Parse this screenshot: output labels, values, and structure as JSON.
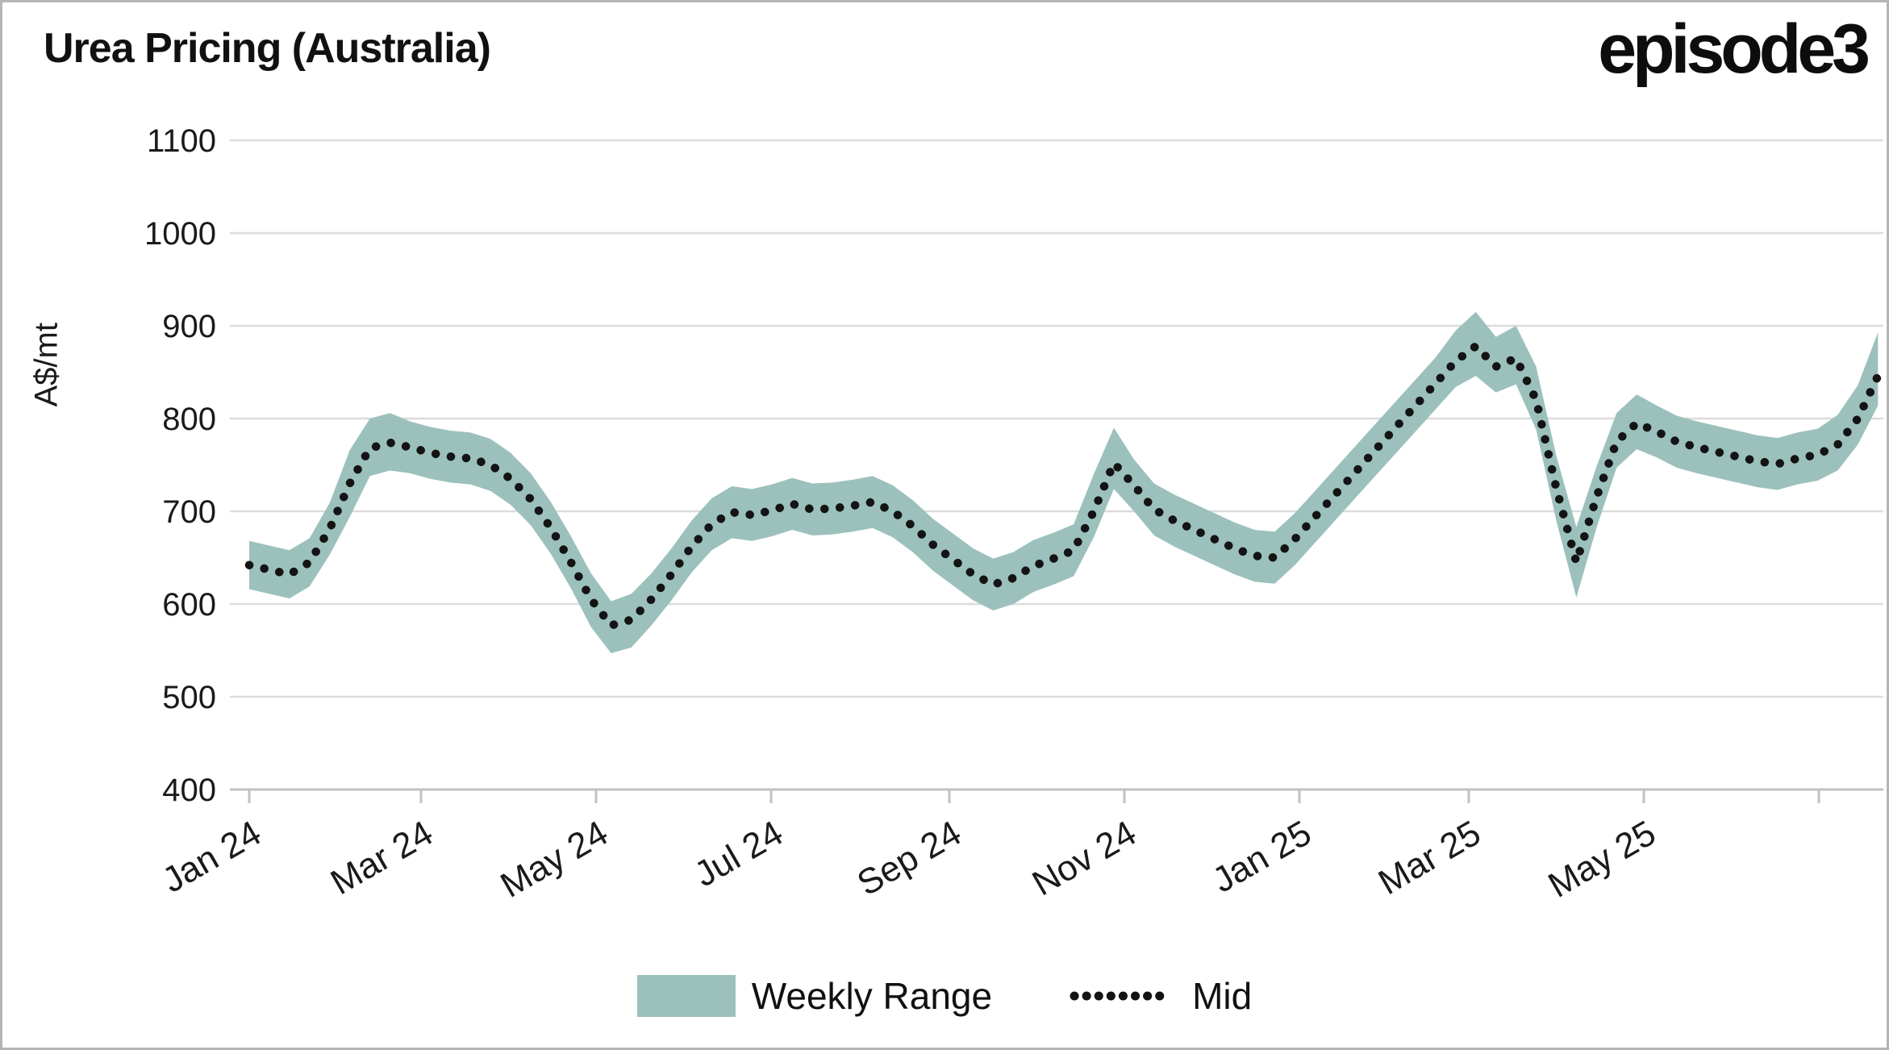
{
  "header": {
    "title": "Urea Pricing (Australia)",
    "logo": "episode3"
  },
  "chart_data": {
    "type": "area",
    "title": "Urea Pricing (Australia)",
    "ylabel": "A$/mt",
    "xlabel": "",
    "ylim": [
      400,
      1100
    ],
    "grid": "horizontal",
    "legend_position": "bottom-center",
    "y_ticks": [
      1100,
      1000,
      900,
      800,
      700,
      600,
      500,
      400
    ],
    "x_tick_labels": [
      "Jan 24",
      "Mar 24",
      "May 24",
      "Jul 24",
      "Sep 24",
      "Nov 24",
      "Jan 25",
      "Mar 25",
      "May 25"
    ],
    "x_frequency": "weekly starting Jan 2024",
    "legend": [
      {
        "label": "Weekly Range",
        "type": "band",
        "color": "#9cc1bd"
      },
      {
        "label": "Mid",
        "type": "dotted-line",
        "color": "#141414"
      }
    ],
    "series": {
      "mid": [
        642,
        637,
        632,
        645,
        681,
        730,
        768,
        774,
        769,
        763,
        759,
        757,
        750,
        735,
        713,
        682,
        645,
        605,
        577,
        583,
        605,
        632,
        662,
        686,
        699,
        696,
        701,
        708,
        702,
        703,
        706,
        710,
        700,
        684,
        664,
        648,
        632,
        621,
        628,
        641,
        649,
        658,
        700,
        752,
        728,
        702,
        690,
        680,
        670,
        660,
        652,
        650,
        670,
        694,
        718,
        742,
        766,
        790,
        814,
        838,
        862,
        878,
        856,
        865,
        820,
        725,
        645,
        715,
        775,
        795,
        786,
        775,
        769,
        764,
        759,
        754,
        751,
        757,
        761,
        772,
        800,
        846
      ],
      "low": [
        616,
        611,
        606,
        619,
        653,
        694,
        738,
        744,
        741,
        735,
        731,
        729,
        722,
        707,
        685,
        654,
        617,
        575,
        547,
        553,
        577,
        604,
        634,
        658,
        671,
        668,
        673,
        680,
        674,
        675,
        678,
        682,
        672,
        656,
        636,
        620,
        604,
        593,
        600,
        613,
        621,
        630,
        672,
        724,
        700,
        674,
        662,
        652,
        642,
        632,
        624,
        622,
        642,
        666,
        690,
        714,
        738,
        762,
        786,
        810,
        834,
        846,
        828,
        837,
        788,
        690,
        607,
        682,
        747,
        767,
        758,
        747,
        741,
        736,
        731,
        726,
        723,
        729,
        733,
        744,
        772,
        814
      ],
      "high": [
        668,
        663,
        658,
        671,
        709,
        766,
        800,
        806,
        797,
        791,
        787,
        785,
        778,
        763,
        741,
        710,
        673,
        633,
        603,
        611,
        633,
        660,
        690,
        714,
        727,
        724,
        729,
        736,
        730,
        731,
        734,
        738,
        728,
        712,
        692,
        676,
        660,
        649,
        656,
        669,
        677,
        686,
        740,
        790,
        756,
        730,
        718,
        708,
        698,
        688,
        680,
        678,
        698,
        722,
        746,
        770,
        794,
        818,
        842,
        866,
        895,
        915,
        888,
        900,
        856,
        760,
        683,
        748,
        806,
        826,
        814,
        803,
        797,
        792,
        787,
        782,
        779,
        785,
        789,
        804,
        836,
        893
      ]
    }
  },
  "colors": {
    "band": "#9cc1bd",
    "mid_line": "#141414",
    "gridline": "#dcdcdc",
    "axis": "#c2c2c2",
    "text": "#1a1a1a",
    "frame": "#b5b5b5",
    "background": "#ffffff"
  }
}
